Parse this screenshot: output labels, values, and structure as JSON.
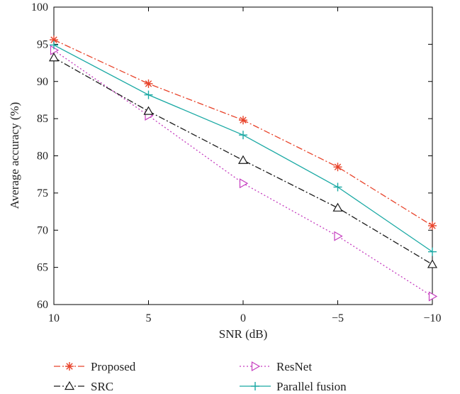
{
  "chart_data": {
    "type": "line",
    "xlabel": "SNR (dB)",
    "ylabel": "Average accuracy (%)",
    "x": [
      10,
      5,
      0,
      -5,
      -10
    ],
    "x_tick_labels": [
      "10",
      "5",
      "0",
      "−5",
      "−10"
    ],
    "xlim": [
      10,
      -10
    ],
    "x_reversed": true,
    "ylim": [
      60,
      100
    ],
    "y_ticks": [
      60,
      65,
      70,
      75,
      80,
      85,
      90,
      95,
      100
    ],
    "y_tick_labels": [
      "60",
      "65",
      "70",
      "75",
      "80",
      "85",
      "90",
      "95",
      "100"
    ],
    "grid": false,
    "legend_position": "bottom",
    "series": [
      {
        "name": "Proposed",
        "values": [
          95.6,
          89.7,
          84.8,
          78.5,
          70.6
        ],
        "color": "#e8432a",
        "marker": "asterisk",
        "dash": "dashdot"
      },
      {
        "name": "ResNet",
        "values": [
          94.2,
          85.4,
          76.3,
          69.2,
          61.1
        ],
        "color": "#c53cbf",
        "marker": "triangle-right",
        "dash": "dotted"
      },
      {
        "name": "SRC",
        "values": [
          93.2,
          86.0,
          79.4,
          73.0,
          65.4
        ],
        "color": "#1a1a1a",
        "marker": "triangle-up",
        "dash": "dashdot"
      },
      {
        "name": "Parallel fusion",
        "values": [
          94.9,
          88.2,
          82.8,
          75.8,
          67.1
        ],
        "color": "#1aa9a4",
        "marker": "plus",
        "dash": "solid"
      }
    ]
  }
}
